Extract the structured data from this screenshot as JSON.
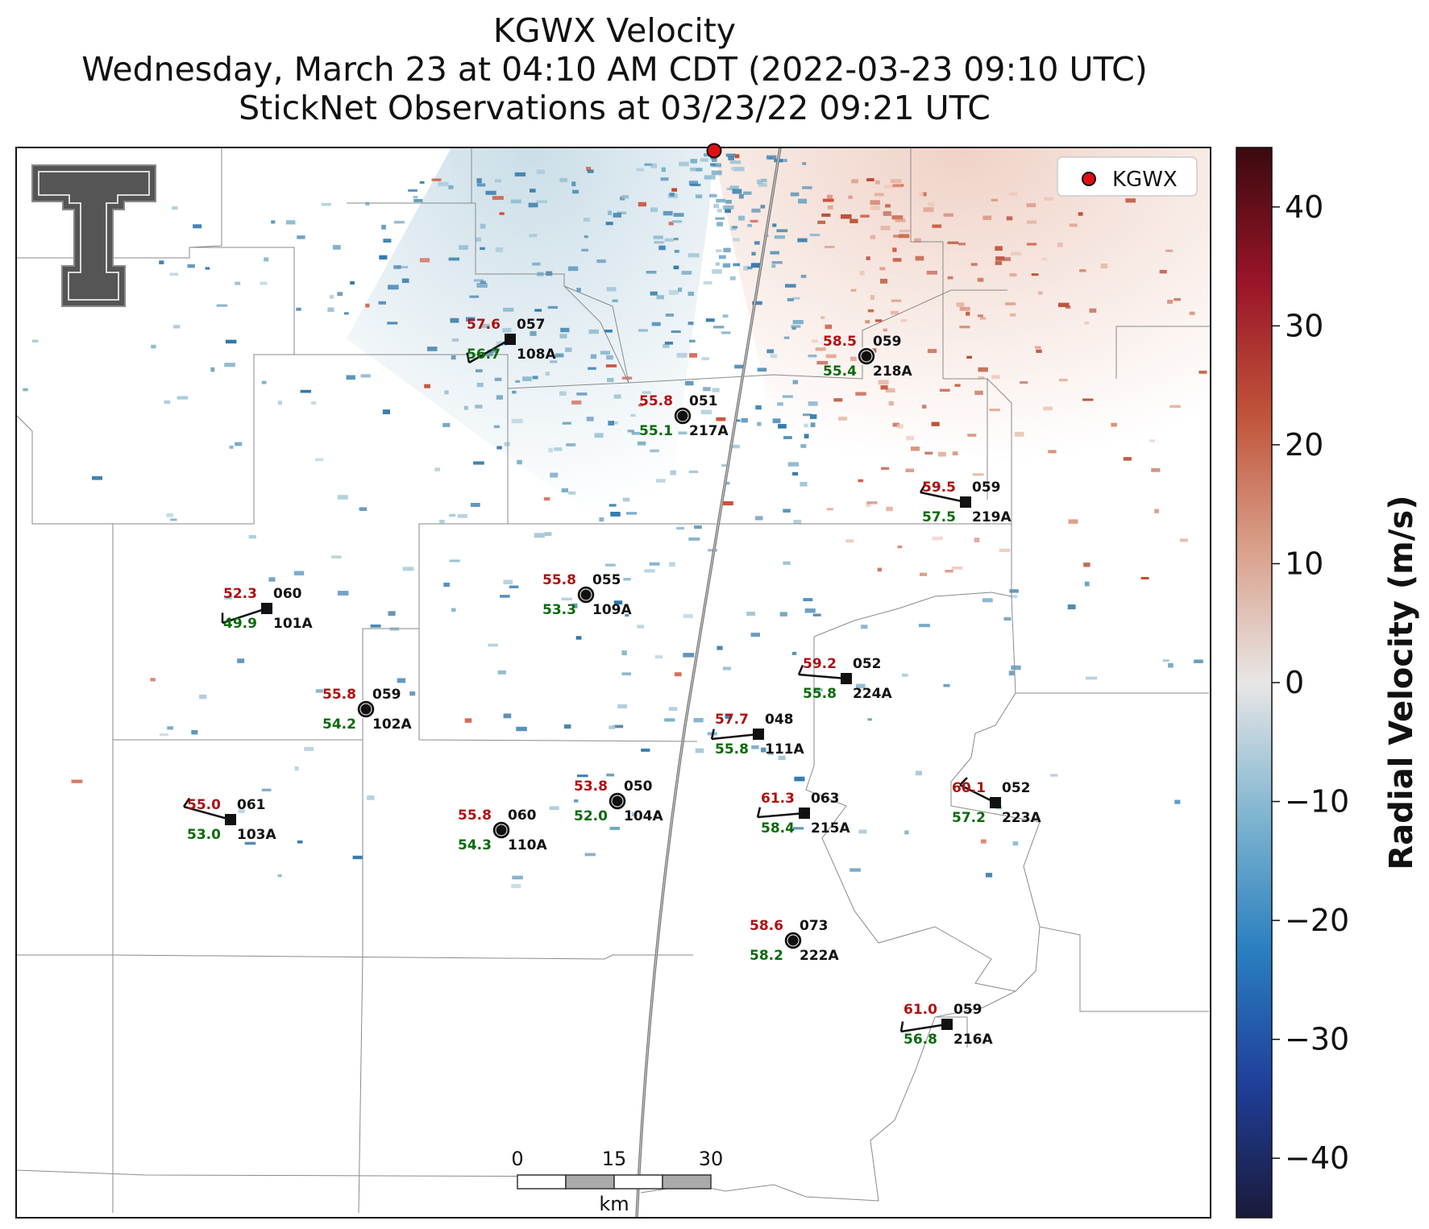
{
  "title": {
    "line1": "KGWX Velocity",
    "line2": "Wednesday, March 23 at 04:10 AM CDT (2022-03-23 09:10 UTC)",
    "line3": "StickNet Observations at 03/23/22 09:21 UTC"
  },
  "legend": {
    "label": "KGWX",
    "marker_color": "#e01010"
  },
  "radar": {
    "name": "KGWX"
  },
  "colorbar": {
    "label": "Radial Velocity (m/s)",
    "ticks": [
      "40",
      "30",
      "20",
      "10",
      "0",
      "−10",
      "−20",
      "−30",
      "−40"
    ],
    "range": [
      -45,
      45
    ],
    "colors": [
      "#1a1a3a",
      "#1f3f9a",
      "#2a7fc0",
      "#7fb5cf",
      "#e8e6e6",
      "#d9a08a",
      "#c0543a",
      "#9a1428",
      "#3a0a0e"
    ]
  },
  "scale_bar": {
    "ticks": [
      "0",
      "15",
      "30"
    ],
    "unit": "km"
  },
  "logo": {
    "text": "TT"
  },
  "stations": [
    {
      "id": "108A",
      "temp": "57.6",
      "dew": "56.7",
      "dir": "057",
      "marker": "square"
    },
    {
      "id": "218A",
      "temp": "58.5",
      "dew": "55.4",
      "dir": "059",
      "marker": "circle"
    },
    {
      "id": "217A",
      "temp": "55.8",
      "dew": "55.1",
      "dir": "051",
      "marker": "circle"
    },
    {
      "id": "219A",
      "temp": "59.5",
      "dew": "57.5",
      "dir": "059",
      "marker": "square"
    },
    {
      "id": "101A",
      "temp": "52.3",
      "dew": "49.9",
      "dir": "060",
      "marker": "square"
    },
    {
      "id": "109A",
      "temp": "55.8",
      "dew": "53.3",
      "dir": "055",
      "marker": "circle"
    },
    {
      "id": "224A",
      "temp": "59.2",
      "dew": "55.8",
      "dir": "052",
      "marker": "square"
    },
    {
      "id": "102A",
      "temp": "55.8",
      "dew": "54.2",
      "dir": "059",
      "marker": "circle"
    },
    {
      "id": "111A",
      "temp": "57.7",
      "dew": "55.8",
      "dir": "048",
      "marker": "square"
    },
    {
      "id": "104A",
      "temp": "53.8",
      "dew": "52.0",
      "dir": "050",
      "marker": "circle"
    },
    {
      "id": "103A",
      "temp": "55.0",
      "dew": "53.0",
      "dir": "061",
      "marker": "square"
    },
    {
      "id": "110A",
      "temp": "55.8",
      "dew": "54.3",
      "dir": "060",
      "marker": "circle"
    },
    {
      "id": "215A",
      "temp": "61.3",
      "dew": "58.4",
      "dir": "063",
      "marker": "square"
    },
    {
      "id": "223A",
      "temp": "60.1",
      "dew": "57.2",
      "dir": "052",
      "marker": "square"
    },
    {
      "id": "222A",
      "temp": "58.6",
      "dew": "58.2",
      "dir": "073",
      "marker": "circle"
    },
    {
      "id": "216A",
      "temp": "61.0",
      "dew": "56.8",
      "dir": "059",
      "marker": "square"
    }
  ]
}
